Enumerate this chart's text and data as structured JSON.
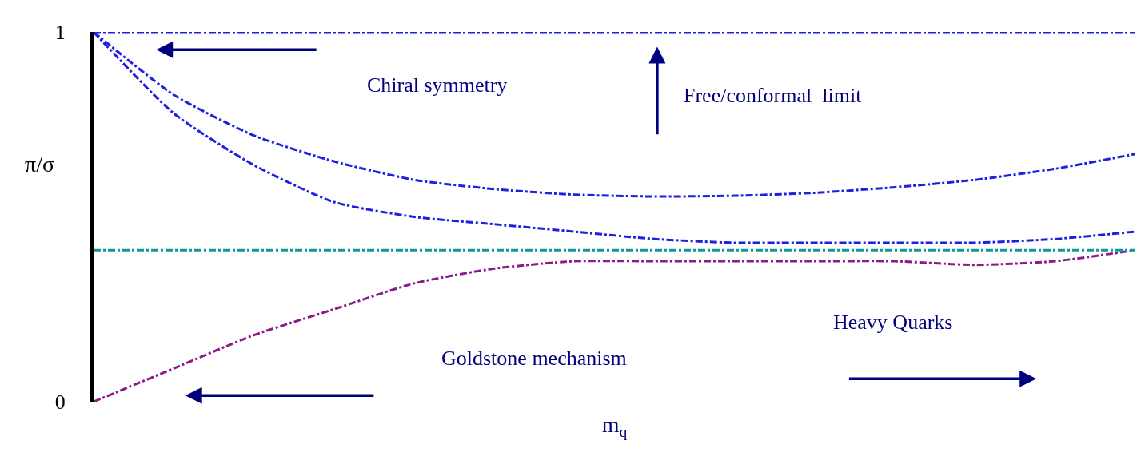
{
  "chart_data": {
    "type": "line",
    "relative": false,
    "categories": [
      null,
      null,
      null,
      null,
      null,
      null,
      null,
      null,
      null,
      null,
      null,
      null,
      null,
      null
    ],
    "series": [
      {
        "color": "#1f1fe0",
        "values": [
          1,
          0.83,
          0.72,
          0.65,
          0.6,
          0.575,
          0.56,
          0.555,
          0.557,
          0.565,
          0.58,
          0.6,
          0.63,
          0.67
        ]
      },
      {
        "color": "#1f1fe0",
        "values": [
          1,
          0.78,
          0.64,
          0.54,
          0.5,
          0.48,
          0.46,
          0.44,
          0.43,
          0.43,
          0.43,
          0.43,
          0.44,
          0.46
        ]
      },
      {
        "color": "#8b1a8b",
        "values": [
          0,
          0.09,
          0.18,
          0.25,
          0.32,
          0.36,
          0.38,
          0.38,
          0.38,
          0.38,
          0.38,
          0.37,
          0.38,
          0.41
        ]
      }
    ],
    "ref_lines": [
      {
        "axis": "y",
        "value": 1,
        "color": "#1f1fe0",
        "line_style": "dashdot"
      },
      {
        "axis": "y",
        "value": 0.41,
        "color": "#0f9a9a",
        "line_style": "dashdot"
      }
    ],
    "line_style": "dashdot",
    "marker": "none",
    "ylim": [
      0,
      1
    ],
    "yticks": [
      0,
      1
    ],
    "tick_labels": "y",
    "ylabel": "π/σ",
    "xlabel": "m$_{q}$",
    "annotations": [
      "Chiral symmetry",
      "Free/conformal  limit",
      "Heavy Quarks",
      "Goldstone mechanism"
    ],
    "legend": false
  }
}
